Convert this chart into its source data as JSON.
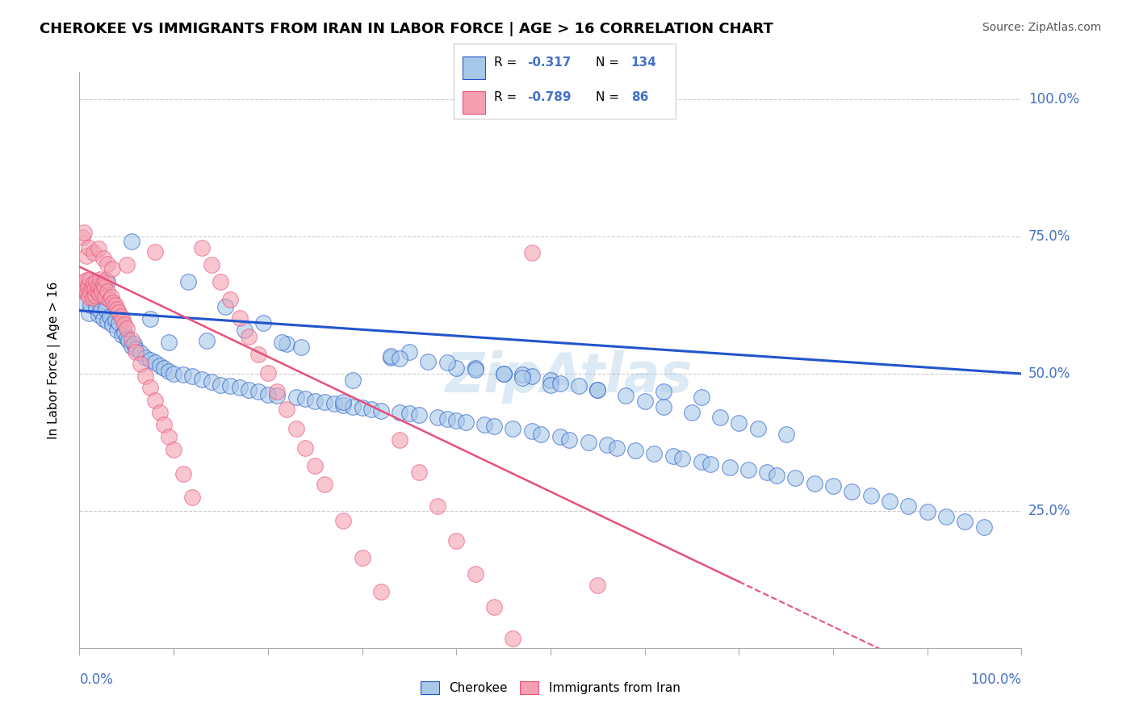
{
  "title": "CHEROKEE VS IMMIGRANTS FROM IRAN IN LABOR FORCE | AGE > 16 CORRELATION CHART",
  "source": "Source: ZipAtlas.com",
  "ylabel": "In Labor Force | Age > 16",
  "yticks": [
    "25.0%",
    "50.0%",
    "75.0%",
    "100.0%"
  ],
  "ytick_vals": [
    0.25,
    0.5,
    0.75,
    1.0
  ],
  "blue_color": "#a8c8e8",
  "pink_color": "#f4a0b0",
  "blue_line_color": "#2255cc",
  "pink_line_color": "#e8507a",
  "watermark": "ZipAtlas",
  "blue_R": -0.317,
  "blue_N": 134,
  "pink_R": -0.789,
  "pink_N": 86,
  "xlim": [
    0.0,
    1.0
  ],
  "ylim": [
    0.0,
    1.05
  ],
  "blue_intercept": 0.615,
  "blue_slope": -0.115,
  "pink_intercept": 0.695,
  "pink_slope": -0.82,
  "blue_scatter_x": [
    0.005,
    0.008,
    0.01,
    0.012,
    0.015,
    0.018,
    0.02,
    0.022,
    0.025,
    0.028,
    0.03,
    0.032,
    0.035,
    0.038,
    0.04,
    0.042,
    0.045,
    0.048,
    0.05,
    0.052,
    0.055,
    0.058,
    0.06,
    0.065,
    0.07,
    0.075,
    0.08,
    0.085,
    0.09,
    0.095,
    0.1,
    0.11,
    0.12,
    0.13,
    0.14,
    0.15,
    0.16,
    0.17,
    0.18,
    0.19,
    0.2,
    0.21,
    0.22,
    0.23,
    0.24,
    0.25,
    0.26,
    0.27,
    0.28,
    0.29,
    0.3,
    0.31,
    0.32,
    0.33,
    0.34,
    0.35,
    0.36,
    0.37,
    0.38,
    0.39,
    0.4,
    0.41,
    0.42,
    0.43,
    0.44,
    0.45,
    0.46,
    0.47,
    0.48,
    0.49,
    0.5,
    0.51,
    0.52,
    0.53,
    0.54,
    0.55,
    0.56,
    0.57,
    0.58,
    0.59,
    0.6,
    0.61,
    0.62,
    0.63,
    0.64,
    0.65,
    0.66,
    0.67,
    0.68,
    0.69,
    0.7,
    0.71,
    0.72,
    0.73,
    0.74,
    0.75,
    0.76,
    0.78,
    0.8,
    0.82,
    0.84,
    0.86,
    0.88,
    0.9,
    0.92,
    0.94,
    0.96,
    0.03,
    0.055,
    0.075,
    0.095,
    0.115,
    0.135,
    0.155,
    0.175,
    0.195,
    0.215,
    0.235,
    0.29,
    0.33,
    0.4,
    0.45,
    0.35,
    0.48,
    0.55,
    0.39,
    0.42,
    0.28,
    0.5,
    0.47,
    0.51,
    0.34,
    0.62,
    0.66
  ],
  "blue_scatter_y": [
    0.63,
    0.65,
    0.61,
    0.625,
    0.64,
    0.62,
    0.608,
    0.615,
    0.6,
    0.618,
    0.595,
    0.605,
    0.59,
    0.598,
    0.58,
    0.592,
    0.57,
    0.575,
    0.565,
    0.56,
    0.55,
    0.555,
    0.545,
    0.538,
    0.53,
    0.525,
    0.52,
    0.515,
    0.51,
    0.505,
    0.5,
    0.498,
    0.495,
    0.49,
    0.485,
    0.48,
    0.478,
    0.475,
    0.47,
    0.468,
    0.462,
    0.46,
    0.555,
    0.458,
    0.455,
    0.45,
    0.448,
    0.445,
    0.442,
    0.44,
    0.438,
    0.435,
    0.432,
    0.53,
    0.43,
    0.428,
    0.425,
    0.522,
    0.42,
    0.418,
    0.415,
    0.412,
    0.51,
    0.408,
    0.405,
    0.5,
    0.4,
    0.498,
    0.395,
    0.39,
    0.488,
    0.385,
    0.38,
    0.478,
    0.375,
    0.47,
    0.37,
    0.365,
    0.46,
    0.36,
    0.45,
    0.355,
    0.44,
    0.35,
    0.345,
    0.43,
    0.34,
    0.335,
    0.42,
    0.33,
    0.41,
    0.325,
    0.4,
    0.32,
    0.315,
    0.39,
    0.31,
    0.3,
    0.295,
    0.285,
    0.278,
    0.268,
    0.258,
    0.248,
    0.24,
    0.23,
    0.22,
    0.668,
    0.742,
    0.6,
    0.558,
    0.668,
    0.56,
    0.622,
    0.58,
    0.592,
    0.558,
    0.548,
    0.488,
    0.532,
    0.51,
    0.5,
    0.54,
    0.495,
    0.47,
    0.52,
    0.508,
    0.448,
    0.48,
    0.492,
    0.482,
    0.528,
    0.468,
    0.458
  ],
  "pink_scatter_x": [
    0.002,
    0.004,
    0.005,
    0.006,
    0.007,
    0.008,
    0.009,
    0.01,
    0.011,
    0.012,
    0.013,
    0.014,
    0.015,
    0.016,
    0.017,
    0.018,
    0.019,
    0.02,
    0.021,
    0.022,
    0.023,
    0.024,
    0.025,
    0.026,
    0.027,
    0.028,
    0.03,
    0.032,
    0.034,
    0.036,
    0.038,
    0.04,
    0.042,
    0.044,
    0.046,
    0.048,
    0.05,
    0.055,
    0.06,
    0.065,
    0.07,
    0.075,
    0.08,
    0.085,
    0.09,
    0.095,
    0.1,
    0.11,
    0.12,
    0.13,
    0.14,
    0.15,
    0.16,
    0.17,
    0.18,
    0.19,
    0.2,
    0.21,
    0.22,
    0.23,
    0.24,
    0.25,
    0.26,
    0.28,
    0.3,
    0.32,
    0.34,
    0.36,
    0.38,
    0.4,
    0.42,
    0.44,
    0.46,
    0.48,
    0.003,
    0.005,
    0.007,
    0.01,
    0.015,
    0.02,
    0.025,
    0.03,
    0.035,
    0.05,
    0.08,
    0.55
  ],
  "pink_scatter_y": [
    0.66,
    0.655,
    0.668,
    0.65,
    0.67,
    0.645,
    0.66,
    0.64,
    0.672,
    0.648,
    0.658,
    0.638,
    0.665,
    0.655,
    0.642,
    0.668,
    0.65,
    0.66,
    0.645,
    0.672,
    0.655,
    0.648,
    0.665,
    0.658,
    0.64,
    0.67,
    0.65,
    0.635,
    0.64,
    0.63,
    0.625,
    0.618,
    0.612,
    0.605,
    0.598,
    0.59,
    0.582,
    0.562,
    0.54,
    0.518,
    0.495,
    0.475,
    0.452,
    0.43,
    0.408,
    0.385,
    0.362,
    0.318,
    0.275,
    0.73,
    0.698,
    0.668,
    0.635,
    0.602,
    0.568,
    0.535,
    0.502,
    0.468,
    0.435,
    0.4,
    0.365,
    0.332,
    0.298,
    0.232,
    0.165,
    0.102,
    0.38,
    0.32,
    0.258,
    0.195,
    0.135,
    0.075,
    0.018,
    0.72,
    0.748,
    0.758,
    0.715,
    0.73,
    0.72,
    0.728,
    0.71,
    0.7,
    0.692,
    0.698,
    0.722,
    0.115
  ]
}
